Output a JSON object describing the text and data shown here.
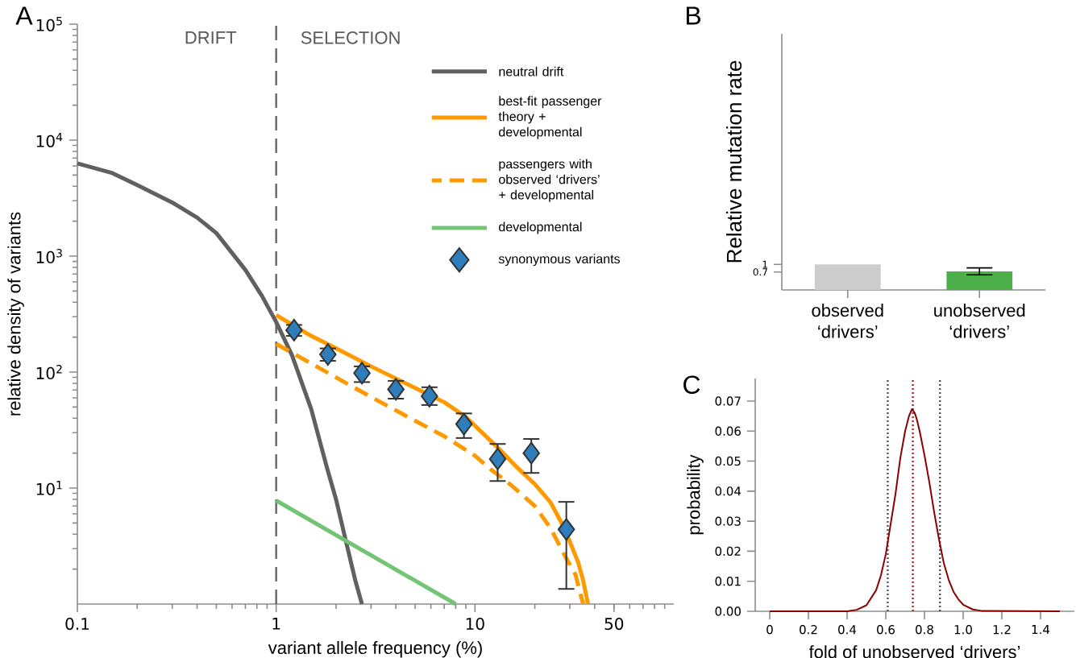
{
  "chart_data": [
    {
      "type": "line",
      "title": "A",
      "xlabel": "variant allele frequency (%)",
      "ylabel": "relative density of variants",
      "log": "xy",
      "xlim": [
        0.1,
        100
      ],
      "ylim": [
        1,
        100000
      ],
      "xticks": [
        0.1,
        1,
        10,
        50
      ],
      "yticks": [
        {
          "value": 10,
          "label": "10$^{1}$"
        },
        {
          "value": 100,
          "label": "10$^{2}$"
        },
        {
          "value": 1000,
          "label": "10$^{3}$"
        },
        {
          "value": 10000,
          "label": "10$^{4}$"
        },
        {
          "value": 100000,
          "label": "10$^{5}$"
        }
      ],
      "legend": "top right",
      "annotations": [
        "DRIFT",
        "SELECTION"
      ],
      "ref_lines": [
        {
          "axis": "x",
          "value": 1,
          "color": "#666666",
          "line_style": "dashed"
        }
      ],
      "series": [
        {
          "name": "neutral drift",
          "color": "#606060",
          "x": [
            0.1,
            0.15,
            0.2,
            0.3,
            0.4,
            0.5,
            0.7,
            0.85,
            1,
            1.2,
            1.5,
            1.8,
            2,
            2.2,
            2.5,
            2.7
          ],
          "values": [
            6300,
            5200,
            4100,
            2900,
            2150,
            1580,
            760,
            450,
            270,
            140,
            48,
            15,
            8,
            4,
            1.6,
            1
          ]
        },
        {
          "name": "best-fit passenger theory + developmental",
          "color": "#ff9900",
          "x": [
            1,
            1.5,
            2,
            3,
            5,
            7,
            9,
            13.5,
            16,
            20,
            24,
            28,
            33,
            35,
            37
          ],
          "values": [
            310,
            205,
            160,
            112,
            73,
            55,
            41,
            21,
            15.5,
            10.8,
            7.5,
            4.6,
            2.3,
            1.6,
            1
          ]
        },
        {
          "name": "passengers with observed ‘drivers’ + developmental",
          "color": "#ff9900",
          "line_style": "dashed",
          "x": [
            1,
            2,
            3,
            5,
            7,
            10,
            12,
            15,
            20,
            24,
            28,
            32,
            35
          ],
          "values": [
            175,
            90,
            61,
            38,
            28,
            19,
            14.5,
            10.8,
            7,
            4.5,
            2.7,
            1.8,
            1
          ]
        },
        {
          "name": "developmental",
          "color": "#74c476",
          "x": [
            1,
            8
          ],
          "values": [
            7.8,
            1
          ]
        },
        {
          "name": "synonymous variants",
          "type": "scatter",
          "marker": "diamond",
          "color": "#2e7ebc",
          "x": [
            1.23,
            1.82,
            2.7,
            4.0,
            5.9,
            8.8,
            13,
            19.2,
            28.8
          ],
          "values": [
            230,
            142,
            98,
            71,
            62,
            35.6,
            17.8,
            20,
            4.4
          ],
          "errors": [
            [
              205,
              255
            ],
            [
              125,
              160
            ],
            [
              82,
              112
            ],
            [
              59,
              84
            ],
            [
              52,
              74
            ],
            [
              27,
              44
            ],
            [
              11.5,
              24
            ],
            [
              13.5,
              26.5
            ],
            [
              1.35,
              7.6
            ]
          ]
        }
      ]
    },
    {
      "type": "bar",
      "title": "B",
      "ylabel": "Relative mutation rate",
      "categories": [
        "observed ‘drivers’",
        "unobserved ‘drivers’"
      ],
      "values": [
        1,
        0.72
      ],
      "colors": [
        "#cccccc",
        "#4daf4a"
      ],
      "errors": [
        null,
        [
          0.59,
          0.86
        ]
      ],
      "ylim": [
        0,
        10
      ],
      "yticks": [
        0.7,
        1
      ]
    },
    {
      "type": "line",
      "title": "C",
      "xlabel": "fold of unobserved ‘drivers’",
      "ylabel": "probability",
      "xlim": [
        -0.075,
        1.575
      ],
      "ylim": [
        0,
        0.0775
      ],
      "xticks": [
        0,
        0.2,
        0.4,
        0.6,
        0.8,
        {
          "value": 1,
          "label": "1.0"
        },
        1.2,
        1.4
      ],
      "yticks": [
        {
          "value": 0,
          "label": "0.00"
        },
        0.01,
        0.02,
        0.03,
        0.04,
        0.05,
        0.06,
        0.07
      ],
      "ref_lines": [
        {
          "axis": "x",
          "value": 0.61,
          "color": "#555555",
          "line_style": "dotted"
        },
        {
          "axis": "x",
          "value": 0.74,
          "color": "#b22222",
          "line_style": "dotted"
        },
        {
          "axis": "x",
          "value": 0.88,
          "color": "#555555",
          "line_style": "dotted"
        }
      ],
      "series": [
        {
          "color": "#8b0000",
          "x": [
            0,
            0.4,
            0.45,
            0.5,
            0.55,
            0.575,
            0.6,
            0.625,
            0.65,
            0.675,
            0.7,
            0.72,
            0.735,
            0.75,
            0.76,
            0.775,
            0.8,
            0.825,
            0.85,
            0.875,
            0.9,
            0.925,
            0.95,
            0.975,
            1.0,
            1.05,
            1.1,
            1.5
          ],
          "values": [
            0,
            0,
            0.0005,
            0.002,
            0.007,
            0.012,
            0.019,
            0.029,
            0.039,
            0.051,
            0.06,
            0.065,
            0.0673,
            0.066,
            0.064,
            0.06,
            0.052,
            0.043,
            0.033,
            0.024,
            0.016,
            0.0105,
            0.0065,
            0.004,
            0.0022,
            0.0006,
            0.0001,
            0
          ]
        }
      ]
    }
  ]
}
